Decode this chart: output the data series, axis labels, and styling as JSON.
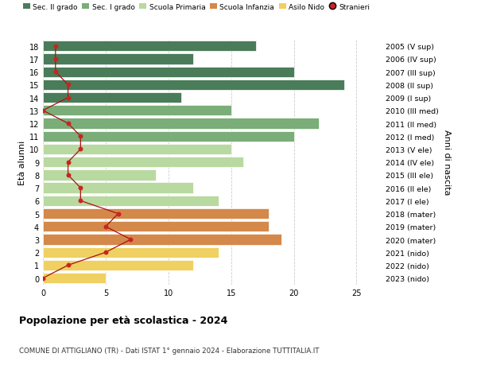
{
  "ages": [
    18,
    17,
    16,
    15,
    14,
    13,
    12,
    11,
    10,
    9,
    8,
    7,
    6,
    5,
    4,
    3,
    2,
    1,
    0
  ],
  "years": [
    "2005 (V sup)",
    "2006 (IV sup)",
    "2007 (III sup)",
    "2008 (II sup)",
    "2009 (I sup)",
    "2010 (III med)",
    "2011 (II med)",
    "2012 (I med)",
    "2013 (V ele)",
    "2014 (IV ele)",
    "2015 (III ele)",
    "2016 (II ele)",
    "2017 (I ele)",
    "2018 (mater)",
    "2019 (mater)",
    "2020 (mater)",
    "2021 (nido)",
    "2022 (nido)",
    "2023 (nido)"
  ],
  "bar_values": [
    17,
    12,
    20,
    24,
    11,
    15,
    22,
    20,
    15,
    16,
    9,
    12,
    14,
    18,
    18,
    19,
    14,
    12,
    5
  ],
  "bar_colors": [
    "#4a7c59",
    "#4a7c59",
    "#4a7c59",
    "#4a7c59",
    "#4a7c59",
    "#7aad78",
    "#7aad78",
    "#7aad78",
    "#b8d9a0",
    "#b8d9a0",
    "#b8d9a0",
    "#b8d9a0",
    "#b8d9a0",
    "#d4884a",
    "#d4884a",
    "#d4884a",
    "#f0d060",
    "#f0d060",
    "#f0d060"
  ],
  "stranieri_values": [
    1,
    1,
    1,
    2,
    2,
    0,
    2,
    3,
    3,
    2,
    2,
    3,
    3,
    6,
    5,
    7,
    5,
    2,
    0
  ],
  "legend_labels": [
    "Sec. II grado",
    "Sec. I grado",
    "Scuola Primaria",
    "Scuola Infanzia",
    "Asilo Nido",
    "Stranieri"
  ],
  "legend_colors": [
    "#4a7c59",
    "#7aad78",
    "#b8d9a0",
    "#d4884a",
    "#f0d060",
    "#cc2222"
  ],
  "title": "Popolazione per età scolastica - 2024",
  "subtitle": "COMUNE DI ATTIGLIANO (TR) - Dati ISTAT 1° gennaio 2024 - Elaborazione TUTTITALIA.IT",
  "ylabel_left": "Età alunni",
  "ylabel_right": "Anni di nascita",
  "xlim": [
    0,
    27
  ],
  "background_color": "#ffffff",
  "grid_color": "#cccccc",
  "stranieri_color": "#cc2222",
  "stranieri_line_color": "#aa1111"
}
